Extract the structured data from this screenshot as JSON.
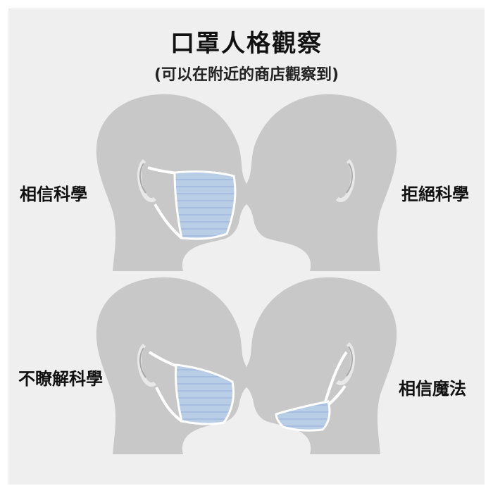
{
  "title": "口罩人格觀察",
  "subtitle": "(可以在附近的商店觀察到)",
  "panels": [
    {
      "label": "相信科學"
    },
    {
      "label": "拒絕科學"
    },
    {
      "label": "不瞭解科學"
    },
    {
      "label": "相信魔法"
    }
  ],
  "colors": {
    "background": "#efefef",
    "head": "#c8c8c8",
    "mask": "#b8cde6",
    "mask_lines": "#9db5d6",
    "ear": "#bcbcbc"
  }
}
